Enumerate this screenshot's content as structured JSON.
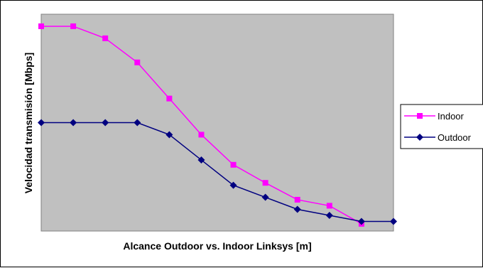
{
  "chart_data": {
    "type": "line",
    "title": "",
    "xlabel": "Alcance Outdoor vs. Indoor Linksys [m]",
    "ylabel": "Velocidad transmisión [Mbps]",
    "ylim": [
      0,
      18
    ],
    "grid": false,
    "legend_position": "right",
    "plot_background": "#c0c0c0",
    "x": [
      1,
      2,
      3,
      4,
      5,
      6,
      7,
      8,
      9,
      10,
      11,
      12
    ],
    "series": [
      {
        "name": "Indoor",
        "color": "#ff00ff",
        "marker": "square",
        "values": [
          17,
          17,
          16,
          14,
          11,
          8,
          5.5,
          4,
          2.6,
          2.1,
          0.6,
          null
        ]
      },
      {
        "name": "Outdoor",
        "color": "#000080",
        "marker": "diamond",
        "values": [
          9,
          9,
          9,
          9,
          8,
          5.9,
          3.8,
          2.8,
          1.8,
          1.3,
          0.8,
          0.8
        ]
      }
    ]
  }
}
